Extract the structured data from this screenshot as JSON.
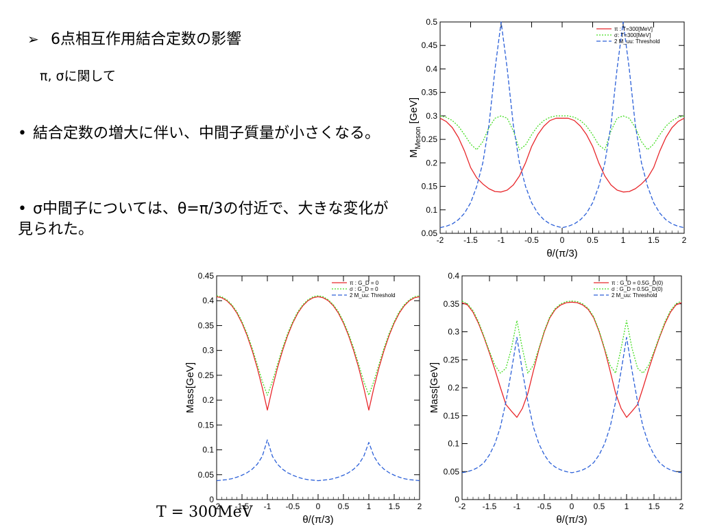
{
  "slide": {
    "heading_bullet": "➢",
    "heading": "6点相互作用結合定数の影響",
    "subheading": "π, σに関して",
    "points": [
      "結合定数の増大に伴い、中間子質量が小さくなる。",
      "σ中間子については、θ=π/3の付近で、大きな変化が見られた。"
    ],
    "bullet": "•",
    "temperature_note": "T = 300MeV"
  },
  "colors": {
    "pi": "#e8262a",
    "sigma": "#44dd22",
    "threshold": "#2a5fd8"
  },
  "chart_data": [
    {
      "type": "line",
      "xlabel": "θ/(π/3)",
      "ylabel": "M_Meson [GeV]",
      "ylabel_main": "M",
      "ylabel_sub": "Meson",
      "ylabel_unit": "[GeV]",
      "xlim": [
        -2,
        2
      ],
      "ylim": [
        0.05,
        0.5
      ],
      "xticks": [
        -2,
        -1.5,
        -1,
        -0.5,
        0,
        0.5,
        1,
        1.5,
        2
      ],
      "yticks": [
        0.05,
        0.1,
        0.15,
        0.2,
        0.25,
        0.3,
        0.35,
        0.4,
        0.45,
        0.5
      ],
      "legend_position": "top-right",
      "x": [
        -2,
        -1.9,
        -1.8,
        -1.7,
        -1.6,
        -1.5,
        -1.4,
        -1.3,
        -1.2,
        -1.1,
        -1.0,
        -0.9,
        -0.8,
        -0.7,
        -0.6,
        -0.5,
        -0.4,
        -0.3,
        -0.2,
        -0.1,
        0,
        0.1,
        0.2,
        0.3,
        0.4,
        0.5,
        0.6,
        0.7,
        0.8,
        0.9,
        1.0,
        1.1,
        1.2,
        1.3,
        1.4,
        1.5,
        1.6,
        1.7,
        1.8,
        1.9,
        2.0
      ],
      "series": [
        {
          "name": "π : T=300[MeV]",
          "color": "#e8262a",
          "dash": "solid",
          "values": [
            0.295,
            0.288,
            0.275,
            0.254,
            0.225,
            0.19,
            0.168,
            0.155,
            0.145,
            0.139,
            0.138,
            0.142,
            0.153,
            0.172,
            0.2,
            0.235,
            0.26,
            0.278,
            0.29,
            0.295,
            0.295,
            0.295,
            0.29,
            0.278,
            0.26,
            0.235,
            0.2,
            0.172,
            0.153,
            0.142,
            0.138,
            0.139,
            0.145,
            0.155,
            0.168,
            0.19,
            0.225,
            0.254,
            0.275,
            0.288,
            0.295
          ]
        },
        {
          "name": "σ: T=300[MeV]",
          "color": "#44dd22",
          "dash": "dot",
          "values": [
            0.3,
            0.297,
            0.29,
            0.278,
            0.26,
            0.24,
            0.228,
            0.245,
            0.275,
            0.295,
            0.3,
            0.295,
            0.268,
            0.228,
            0.238,
            0.26,
            0.278,
            0.29,
            0.297,
            0.3,
            0.3,
            0.3,
            0.297,
            0.29,
            0.278,
            0.26,
            0.238,
            0.228,
            0.268,
            0.295,
            0.3,
            0.295,
            0.275,
            0.245,
            0.228,
            0.24,
            0.26,
            0.278,
            0.29,
            0.297,
            0.3
          ]
        },
        {
          "name": "2 M_uu: Threshold",
          "color": "#2a5fd8",
          "dash": "dash",
          "values": [
            0.062,
            0.065,
            0.07,
            0.079,
            0.093,
            0.115,
            0.15,
            0.2,
            0.28,
            0.4,
            0.5,
            0.4,
            0.28,
            0.2,
            0.15,
            0.115,
            0.093,
            0.079,
            0.07,
            0.065,
            0.062,
            0.065,
            0.07,
            0.079,
            0.093,
            0.115,
            0.15,
            0.2,
            0.28,
            0.4,
            0.5,
            0.4,
            0.28,
            0.2,
            0.15,
            0.115,
            0.093,
            0.079,
            0.07,
            0.065,
            0.062
          ]
        }
      ]
    },
    {
      "type": "line",
      "xlabel": "θ/(π/3)",
      "ylabel": "Mass[GeV]",
      "xlim": [
        -2,
        2
      ],
      "ylim": [
        0,
        0.45
      ],
      "xticks": [
        -2,
        -1.5,
        -1,
        -0.5,
        0,
        0.5,
        1,
        1.5,
        2
      ],
      "yticks": [
        0,
        0.05,
        0.1,
        0.15,
        0.2,
        0.25,
        0.3,
        0.35,
        0.4,
        0.45
      ],
      "legend_position": "top-right",
      "x": [
        -2,
        -1.9,
        -1.8,
        -1.7,
        -1.6,
        -1.5,
        -1.4,
        -1.3,
        -1.2,
        -1.1,
        -1.0,
        -0.9,
        -0.8,
        -0.7,
        -0.6,
        -0.5,
        -0.4,
        -0.3,
        -0.2,
        -0.1,
        0,
        0.1,
        0.2,
        0.3,
        0.4,
        0.5,
        0.6,
        0.7,
        0.8,
        0.9,
        1.0,
        1.1,
        1.2,
        1.3,
        1.4,
        1.5,
        1.6,
        1.7,
        1.8,
        1.9,
        2.0
      ],
      "series": [
        {
          "name": "π : G_D = 0",
          "color": "#e8262a",
          "dash": "solid",
          "values": [
            0.408,
            0.406,
            0.4,
            0.39,
            0.375,
            0.355,
            0.33,
            0.3,
            0.265,
            0.225,
            0.18,
            0.225,
            0.265,
            0.3,
            0.33,
            0.355,
            0.375,
            0.39,
            0.4,
            0.406,
            0.408,
            0.406,
            0.4,
            0.39,
            0.375,
            0.355,
            0.33,
            0.3,
            0.265,
            0.225,
            0.18,
            0.225,
            0.265,
            0.3,
            0.33,
            0.355,
            0.375,
            0.39,
            0.4,
            0.406,
            0.408
          ]
        },
        {
          "name": "σ : G_D = 0",
          "color": "#44dd22",
          "dash": "dot",
          "values": [
            0.41,
            0.408,
            0.402,
            0.392,
            0.378,
            0.358,
            0.334,
            0.305,
            0.272,
            0.238,
            0.21,
            0.238,
            0.272,
            0.305,
            0.334,
            0.358,
            0.378,
            0.392,
            0.402,
            0.408,
            0.41,
            0.408,
            0.402,
            0.392,
            0.378,
            0.358,
            0.334,
            0.305,
            0.272,
            0.238,
            0.21,
            0.238,
            0.272,
            0.305,
            0.334,
            0.358,
            0.378,
            0.392,
            0.402,
            0.408,
            0.41
          ]
        },
        {
          "name": "2 M_uu: Threshold",
          "color": "#2a5fd8",
          "dash": "dash",
          "values": [
            0.038,
            0.039,
            0.04,
            0.042,
            0.045,
            0.049,
            0.054,
            0.061,
            0.071,
            0.087,
            0.12,
            0.087,
            0.071,
            0.061,
            0.054,
            0.049,
            0.045,
            0.042,
            0.04,
            0.039,
            0.038,
            0.039,
            0.04,
            0.042,
            0.045,
            0.049,
            0.054,
            0.061,
            0.071,
            0.087,
            0.115,
            0.087,
            0.071,
            0.061,
            0.054,
            0.049,
            0.045,
            0.042,
            0.04,
            0.039,
            0.038
          ]
        }
      ]
    },
    {
      "type": "line",
      "xlabel": "θ/(π/3)",
      "ylabel": "Mass[GeV]",
      "xlim": [
        -2,
        2
      ],
      "ylim": [
        0,
        0.4
      ],
      "xticks": [
        -2,
        -1.5,
        -1,
        -0.5,
        0,
        0.5,
        1,
        1.5,
        2
      ],
      "yticks": [
        0,
        0.05,
        0.1,
        0.15,
        0.2,
        0.25,
        0.3,
        0.35,
        0.4
      ],
      "legend_position": "top-right",
      "x": [
        -2,
        -1.9,
        -1.8,
        -1.7,
        -1.6,
        -1.5,
        -1.4,
        -1.3,
        -1.2,
        -1.1,
        -1.0,
        -0.9,
        -0.8,
        -0.7,
        -0.6,
        -0.5,
        -0.4,
        -0.3,
        -0.2,
        -0.1,
        0,
        0.1,
        0.2,
        0.3,
        0.4,
        0.5,
        0.6,
        0.7,
        0.8,
        0.9,
        1.0,
        1.1,
        1.2,
        1.3,
        1.4,
        1.5,
        1.6,
        1.7,
        1.8,
        1.9,
        2.0
      ],
      "series": [
        {
          "name": "π : G_D = 0.5G_D(0)",
          "color": "#e8262a",
          "dash": "solid",
          "values": [
            0.352,
            0.348,
            0.335,
            0.315,
            0.29,
            0.262,
            0.232,
            0.2,
            0.17,
            0.158,
            0.147,
            0.163,
            0.19,
            0.23,
            0.268,
            0.3,
            0.325,
            0.34,
            0.348,
            0.352,
            0.353,
            0.352,
            0.348,
            0.34,
            0.325,
            0.3,
            0.268,
            0.23,
            0.19,
            0.163,
            0.147,
            0.158,
            0.17,
            0.2,
            0.232,
            0.262,
            0.29,
            0.315,
            0.335,
            0.348,
            0.352
          ]
        },
        {
          "name": "σ : G_D = 0.5G_D(0)",
          "color": "#44dd22",
          "dash": "dot",
          "values": [
            0.355,
            0.35,
            0.338,
            0.318,
            0.292,
            0.265,
            0.24,
            0.226,
            0.235,
            0.27,
            0.32,
            0.27,
            0.226,
            0.24,
            0.27,
            0.302,
            0.327,
            0.342,
            0.35,
            0.354,
            0.355,
            0.354,
            0.35,
            0.342,
            0.327,
            0.302,
            0.27,
            0.24,
            0.226,
            0.27,
            0.32,
            0.27,
            0.235,
            0.226,
            0.24,
            0.265,
            0.292,
            0.318,
            0.338,
            0.35,
            0.355
          ]
        },
        {
          "name": "2 M_uu: Threshold",
          "color": "#2a5fd8",
          "dash": "dash",
          "values": [
            0.048,
            0.05,
            0.053,
            0.058,
            0.066,
            0.08,
            0.1,
            0.13,
            0.175,
            0.23,
            0.29,
            0.23,
            0.175,
            0.13,
            0.1,
            0.08,
            0.066,
            0.058,
            0.053,
            0.05,
            0.048,
            0.05,
            0.053,
            0.058,
            0.066,
            0.08,
            0.1,
            0.13,
            0.175,
            0.23,
            0.29,
            0.23,
            0.175,
            0.13,
            0.1,
            0.08,
            0.066,
            0.058,
            0.053,
            0.05,
            0.048
          ]
        }
      ]
    }
  ]
}
